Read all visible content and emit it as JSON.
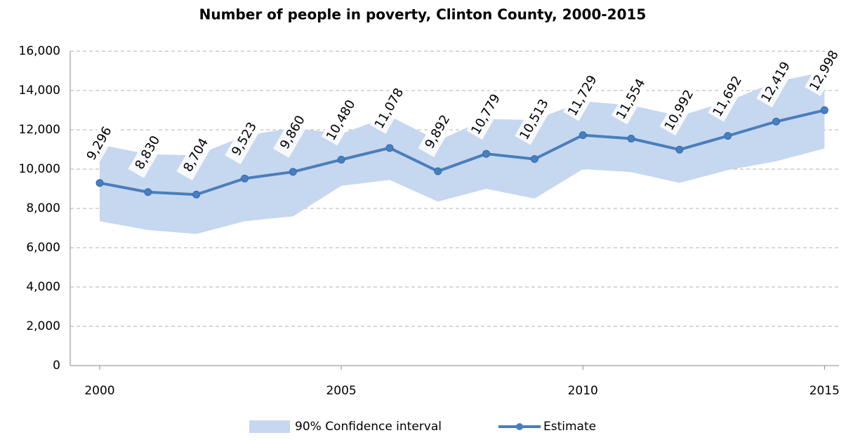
{
  "chart_data": {
    "type": "line",
    "title": "Number of people in poverty, Clinton County, 2000-2015",
    "x": [
      2000,
      2001,
      2002,
      2003,
      2004,
      2005,
      2006,
      2007,
      2008,
      2009,
      2010,
      2011,
      2012,
      2013,
      2014,
      2015
    ],
    "xlim": [
      1999.39,
      2015.3
    ],
    "xticks": [
      2000,
      2005,
      2010,
      2015
    ],
    "ylim": [
      0,
      16000
    ],
    "yticks": [
      0,
      {
        "value": 2000,
        "label": "2,000"
      },
      {
        "value": 4000,
        "label": "4,000"
      },
      {
        "value": 6000,
        "label": "6,000"
      },
      {
        "value": 8000,
        "label": "8,000"
      },
      {
        "value": 10000,
        "label": "10,000"
      },
      {
        "value": 12000,
        "label": "12,000"
      },
      {
        "value": 14000,
        "label": "14,000"
      },
      {
        "value": 16000,
        "label": "16,000"
      }
    ],
    "grid": true,
    "legend": "bottom",
    "series": [
      {
        "name": "90% Confidence interval",
        "color": "#c6d7f0",
        "lower": [
          7350,
          6900,
          6700,
          7350,
          7600,
          9150,
          9450,
          8350,
          9000,
          8500,
          10000,
          9850,
          9300,
          9950,
          10400,
          11050
        ],
        "upper": [
          11250,
          10760,
          10700,
          11700,
          12100,
          11800,
          12700,
          11450,
          12550,
          12500,
          13450,
          13250,
          12700,
          13450,
          14450,
          14950
        ]
      },
      {
        "name": "Estimate",
        "color": "#4a7ebb",
        "values": [
          9296,
          8830,
          8704,
          9523,
          9860,
          10480,
          11078,
          9892,
          10779,
          10513,
          11729,
          11554,
          10992,
          11692,
          12419,
          12998
        ],
        "value_labels": [
          "9,296",
          "8,830",
          "8,704",
          "9,523",
          "9,860",
          "10,480",
          "11,078",
          "9,892",
          "10,779",
          "10,513",
          "11,729",
          "11,554",
          "10,992",
          "11,692",
          "12,419",
          "12,998"
        ]
      }
    ]
  }
}
